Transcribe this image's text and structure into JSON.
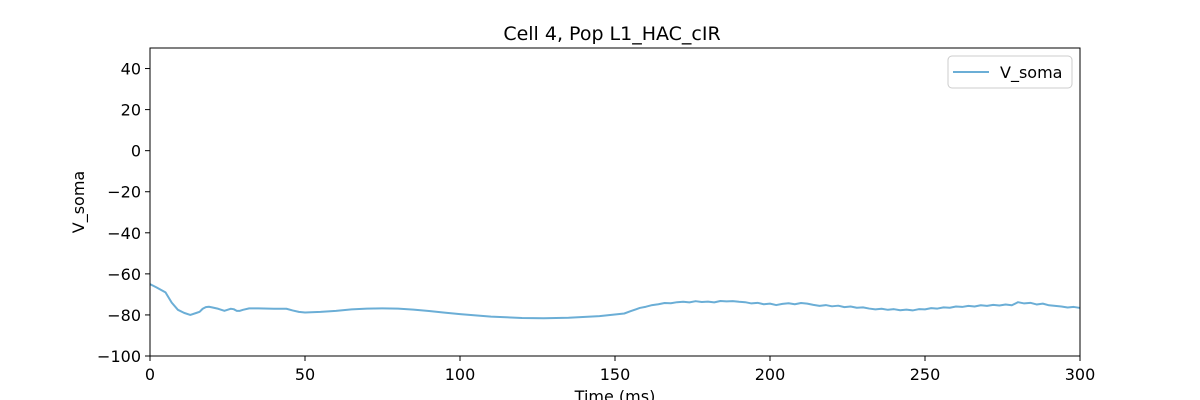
{
  "chart_data": {
    "type": "line",
    "title": "Cell 4, Pop L1_HAC_cIR",
    "xlabel": "Time (ms)",
    "ylabel": "V_soma",
    "xlim": [
      0,
      300
    ],
    "ylim": [
      -100,
      50
    ],
    "xticks": [
      0,
      50,
      100,
      150,
      200,
      250,
      300
    ],
    "yticks": [
      -100,
      -80,
      -60,
      -40,
      -20,
      0,
      20,
      40
    ],
    "grid": false,
    "legend_position": "top-right",
    "series": [
      {
        "name": "V_soma",
        "color": "#6baed6",
        "x": [
          0,
          2,
          5,
          7,
          9,
          11,
          13,
          15,
          16,
          17,
          18,
          19,
          20,
          22,
          24,
          25,
          26,
          27,
          28,
          29,
          30,
          32,
          35,
          40,
          44,
          46,
          48,
          50,
          55,
          60,
          65,
          70,
          75,
          80,
          85,
          90,
          95,
          100,
          110,
          120,
          127,
          135,
          145,
          153,
          155,
          158,
          160,
          162,
          164,
          166,
          168,
          170,
          172,
          174,
          176,
          178,
          180,
          182,
          184,
          186,
          188,
          190,
          192,
          194,
          196,
          198,
          200,
          202,
          204,
          206,
          208,
          210,
          212,
          214,
          216,
          218,
          220,
          222,
          224,
          226,
          228,
          230,
          232,
          234,
          236,
          238,
          240,
          242,
          244,
          246,
          248,
          250,
          252,
          254,
          256,
          258,
          260,
          262,
          264,
          266,
          268,
          270,
          272,
          274,
          276,
          278,
          280,
          282,
          284,
          286,
          288,
          290,
          292,
          294,
          296,
          298,
          300
        ],
        "y": [
          -65,
          -66.5,
          -69,
          -74,
          -77.5,
          -79,
          -80,
          -79,
          -78.5,
          -77,
          -76.2,
          -76,
          -76.3,
          -77,
          -78,
          -77.5,
          -77,
          -77.2,
          -78,
          -78,
          -77.5,
          -76.8,
          -76.8,
          -77,
          -77,
          -77.8,
          -78.5,
          -78.8,
          -78.5,
          -78,
          -77.3,
          -76.9,
          -76.8,
          -76.9,
          -77.4,
          -78.1,
          -78.9,
          -79.6,
          -80.8,
          -81.5,
          -81.6,
          -81.4,
          -80.6,
          -79.3,
          -78.2,
          -76.6,
          -76,
          -75.2,
          -74.8,
          -74.2,
          -74.3,
          -73.8,
          -73.6,
          -73.9,
          -73.3,
          -73.7,
          -73.5,
          -73.9,
          -73.2,
          -73.4,
          -73.3,
          -73.6,
          -73.8,
          -74.4,
          -74.1,
          -74.8,
          -74.5,
          -75.2,
          -74.6,
          -74.3,
          -74.8,
          -74.2,
          -74.5,
          -75.1,
          -75.6,
          -75.2,
          -75.8,
          -75.5,
          -76.2,
          -75.9,
          -76.5,
          -76.3,
          -76.9,
          -77.3,
          -77.0,
          -77.5,
          -77.2,
          -77.7,
          -77.4,
          -77.8,
          -77.2,
          -77.3,
          -76.7,
          -76.9,
          -76.3,
          -76.5,
          -75.9,
          -76.1,
          -75.6,
          -75.9,
          -75.3,
          -75.6,
          -75.1,
          -75.4,
          -74.9,
          -75.3,
          -73.8,
          -74.4,
          -74.1,
          -74.9,
          -74.5,
          -75.3,
          -75.6,
          -75.9,
          -76.4,
          -76.1,
          -76.6
        ]
      }
    ]
  }
}
